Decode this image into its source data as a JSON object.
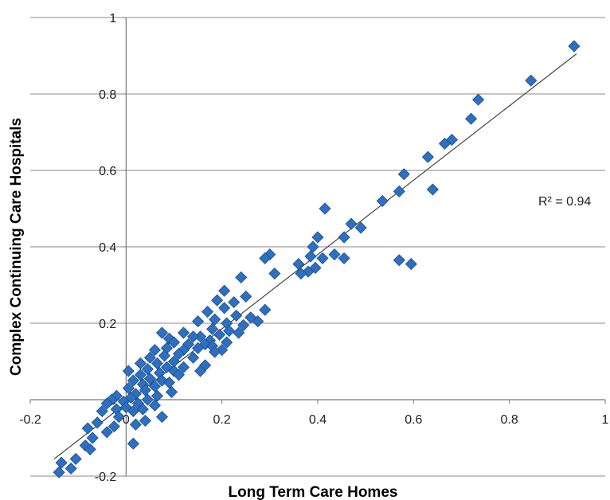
{
  "chart_data": {
    "type": "scatter",
    "title": "",
    "xlabel": "Long Term Care Homes",
    "ylabel": "Complex Continuing Care Hospitals",
    "xlim": [
      -0.2,
      1
    ],
    "ylim": [
      -0.2,
      1
    ],
    "x_ticks": [
      "-0.2",
      "0",
      "0.2",
      "0.4",
      "0.6",
      "0.8",
      "1"
    ],
    "y_ticks": [
      "-0.2",
      "0",
      "0.2",
      "0.4",
      "0.6",
      "0.8",
      "1"
    ],
    "grid": "horizontal",
    "marker": "diamond",
    "marker_color": "#2E6FC0",
    "trendline": {
      "type": "linear",
      "x": [
        -0.15,
        0.94
      ],
      "y": [
        -0.155,
        0.905
      ],
      "color": "#444444"
    },
    "annotation": "R² = 0.94",
    "series": [
      {
        "points": [
          [
            0.935,
            0.925
          ],
          [
            0.845,
            0.835
          ],
          [
            0.735,
            0.785
          ],
          [
            0.72,
            0.735
          ],
          [
            0.68,
            0.68
          ],
          [
            0.665,
            0.67
          ],
          [
            0.63,
            0.635
          ],
          [
            0.64,
            0.55
          ],
          [
            0.58,
            0.59
          ],
          [
            0.57,
            0.545
          ],
          [
            0.535,
            0.52
          ],
          [
            0.57,
            0.365
          ],
          [
            0.595,
            0.355
          ],
          [
            0.415,
            0.5
          ],
          [
            0.47,
            0.46
          ],
          [
            0.49,
            0.45
          ],
          [
            0.455,
            0.425
          ],
          [
            0.4,
            0.425
          ],
          [
            0.455,
            0.37
          ],
          [
            0.435,
            0.38
          ],
          [
            0.39,
            0.4
          ],
          [
            0.385,
            0.375
          ],
          [
            0.41,
            0.37
          ],
          [
            0.36,
            0.355
          ],
          [
            0.395,
            0.345
          ],
          [
            0.38,
            0.335
          ],
          [
            0.365,
            0.33
          ],
          [
            0.3,
            0.38
          ],
          [
            0.29,
            0.37
          ],
          [
            0.31,
            0.33
          ],
          [
            0.24,
            0.32
          ],
          [
            0.205,
            0.285
          ],
          [
            0.25,
            0.27
          ],
          [
            0.19,
            0.26
          ],
          [
            0.225,
            0.255
          ],
          [
            0.205,
            0.24
          ],
          [
            0.29,
            0.235
          ],
          [
            0.17,
            0.23
          ],
          [
            0.23,
            0.22
          ],
          [
            0.26,
            0.215
          ],
          [
            0.275,
            0.205
          ],
          [
            0.185,
            0.21
          ],
          [
            0.15,
            0.205
          ],
          [
            0.245,
            0.195
          ],
          [
            0.21,
            0.2
          ],
          [
            0.18,
            0.185
          ],
          [
            0.215,
            0.18
          ],
          [
            0.235,
            0.175
          ],
          [
            0.195,
            0.17
          ],
          [
            0.155,
            0.165
          ],
          [
            0.12,
            0.175
          ],
          [
            0.075,
            0.175
          ],
          [
            0.14,
            0.165
          ],
          [
            0.09,
            0.16
          ],
          [
            0.175,
            0.155
          ],
          [
            0.21,
            0.15
          ],
          [
            0.165,
            0.145
          ],
          [
            0.13,
            0.145
          ],
          [
            0.1,
            0.15
          ],
          [
            0.18,
            0.14
          ],
          [
            0.2,
            0.13
          ],
          [
            0.15,
            0.135
          ],
          [
            0.12,
            0.13
          ],
          [
            0.085,
            0.135
          ],
          [
            0.06,
            0.13
          ],
          [
            0.185,
            0.125
          ],
          [
            0.11,
            0.12
          ],
          [
            0.08,
            0.115
          ],
          [
            0.14,
            0.11
          ],
          [
            0.05,
            0.11
          ],
          [
            0.1,
            0.1
          ],
          [
            0.065,
            0.095
          ],
          [
            0.03,
            0.095
          ],
          [
            0.165,
            0.09
          ],
          [
            0.12,
            0.085
          ],
          [
            0.085,
            0.085
          ],
          [
            0.045,
            0.08
          ],
          [
            0.155,
            0.075
          ],
          [
            0.1,
            0.075
          ],
          [
            0.005,
            0.075
          ],
          [
            0.07,
            0.07
          ],
          [
            0.03,
            0.065
          ],
          [
            0.11,
            0.065
          ],
          [
            0.05,
            0.055
          ],
          [
            0.075,
            0.05
          ],
          [
            0.015,
            0.05
          ],
          [
            0.09,
            0.045
          ],
          [
            0.035,
            0.04
          ],
          [
            0.06,
            0.035
          ],
          [
            0.005,
            0.03
          ],
          [
            0.04,
            0.025
          ],
          [
            0.095,
            0.02
          ],
          [
            0.02,
            0.015
          ],
          [
            -0.02,
            0.01
          ],
          [
            0.065,
            0.01
          ],
          [
            0.01,
            0.005
          ],
          [
            -0.03,
            0.0
          ],
          [
            0.045,
            0.0
          ],
          [
            -0.005,
            -0.005
          ],
          [
            0.025,
            -0.01
          ],
          [
            -0.04,
            -0.01
          ],
          [
            0.06,
            -0.015
          ],
          [
            0.0,
            -0.02
          ],
          [
            -0.02,
            -0.025
          ],
          [
            0.035,
            -0.025
          ],
          [
            0.015,
            -0.03
          ],
          [
            -0.05,
            -0.03
          ],
          [
            0.075,
            -0.045
          ],
          [
            -0.015,
            -0.045
          ],
          [
            0.04,
            -0.055
          ],
          [
            -0.06,
            -0.06
          ],
          [
            0.02,
            -0.065
          ],
          [
            -0.025,
            -0.07
          ],
          [
            -0.08,
            -0.075
          ],
          [
            -0.04,
            -0.085
          ],
          [
            -0.07,
            -0.1
          ],
          [
            -0.085,
            -0.12
          ],
          [
            -0.075,
            -0.13
          ],
          [
            0.015,
            -0.115
          ],
          [
            -0.105,
            -0.155
          ],
          [
            -0.135,
            -0.165
          ],
          [
            -0.115,
            -0.18
          ],
          [
            -0.14,
            -0.19
          ]
        ]
      }
    ]
  }
}
